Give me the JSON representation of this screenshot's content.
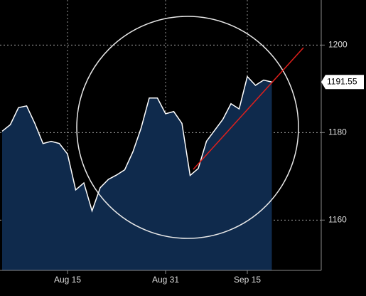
{
  "chart_data": {
    "type": "area",
    "categories": [
      null,
      null,
      null,
      null,
      null,
      null,
      null,
      null,
      "Aug 15",
      null,
      null,
      null,
      null,
      null,
      null,
      null,
      null,
      null,
      null,
      null,
      "Aug 31",
      null,
      null,
      null,
      null,
      null,
      null,
      null,
      null,
      null,
      "Sep 15",
      null,
      null,
      null
    ],
    "series": [
      {
        "color": "#ffffff",
        "fill": "#0f2a4c",
        "values": [
          1180.3,
          1181.8,
          1185.7,
          1186.1,
          1182.1,
          1177.5,
          1178.0,
          1177.5,
          1175.1,
          1166.9,
          1168.5,
          1162.1,
          1167.4,
          1169.3,
          1170.3,
          1171.5,
          1175.6,
          1181.0,
          1187.9,
          1187.9,
          1184.3,
          1184.8,
          1182.1,
          1170.2,
          1171.8,
          1178.0,
          1180.5,
          1183.0,
          1186.6,
          1185.4,
          1192.8,
          1190.8,
          1192.0,
          1191.55
        ]
      }
    ],
    "last_price": 1191.55,
    "ylim": [
      1148.5,
      1210.3
    ],
    "yticks": [
      1160,
      1180,
      1200
    ],
    "grid": true
  }
}
